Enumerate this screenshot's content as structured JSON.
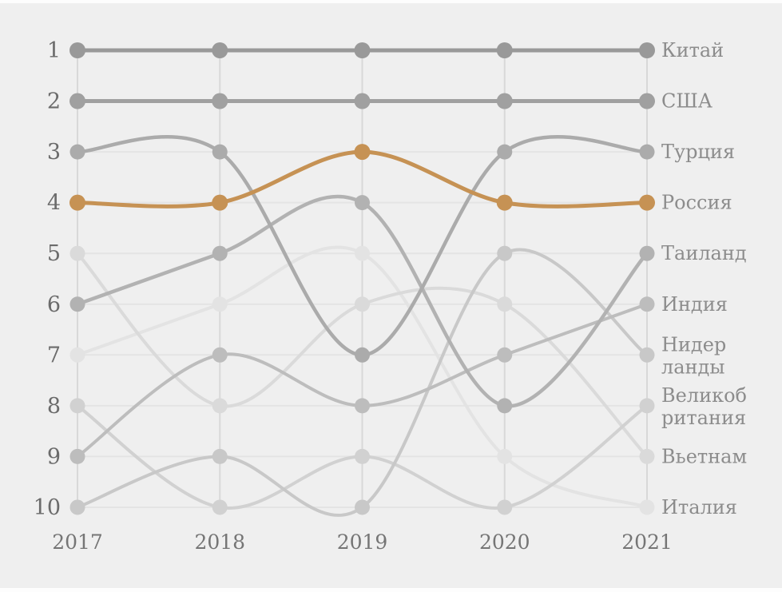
{
  "chart_data": {
    "type": "line",
    "subtype": "bump-rank-chart",
    "x": [
      2017,
      2018,
      2019,
      2020,
      2021
    ],
    "x_tick_labels": [
      "2017",
      "2018",
      "2019",
      "2020",
      "2021"
    ],
    "y_axis": {
      "tick_labels": [
        "1",
        "2",
        "3",
        "4",
        "5",
        "6",
        "7",
        "8",
        "9",
        "10"
      ],
      "range": [
        1,
        10
      ],
      "inverted": true,
      "meaning": "rank (1 = top)"
    },
    "grid": "on",
    "legend_position": "right-edge-labels",
    "background_color": "#efefef",
    "highlight_color": "#c69254",
    "series": [
      {
        "key": "china",
        "name": "Китай",
        "label_lines": [
          "Китай"
        ],
        "ranks": [
          1,
          1,
          1,
          1,
          1
        ],
        "color": "#999999",
        "width": 5,
        "dot_r": 10,
        "highlight": false
      },
      {
        "key": "usa",
        "name": "США",
        "label_lines": [
          "США"
        ],
        "ranks": [
          2,
          2,
          2,
          2,
          2
        ],
        "color": "#a0a0a0",
        "width": 5,
        "dot_r": 10,
        "highlight": false
      },
      {
        "key": "turkey",
        "name": "Турция",
        "label_lines": [
          "Турция"
        ],
        "ranks": [
          3,
          3,
          7,
          3,
          3
        ],
        "color": "#ababab",
        "width": 4.5,
        "dot_r": 9.5,
        "highlight": false
      },
      {
        "key": "russia",
        "name": "Россия",
        "label_lines": [
          "Россия"
        ],
        "ranks": [
          4,
          4,
          3,
          4,
          4
        ],
        "color": "#c69254",
        "width": 5,
        "dot_r": 10,
        "highlight": true
      },
      {
        "key": "thailand",
        "name": "Таиланд",
        "label_lines": [
          "Таиланд"
        ],
        "ranks": [
          6,
          5,
          4,
          8,
          5
        ],
        "color": "#b2b2b2",
        "width": 4.5,
        "dot_r": 9.5,
        "highlight": false
      },
      {
        "key": "india",
        "name": "Индия",
        "label_lines": [
          "Индия"
        ],
        "ranks": [
          9,
          7,
          8,
          7,
          6
        ],
        "color": "#bdbdbd",
        "width": 4,
        "dot_r": 9.5,
        "highlight": false
      },
      {
        "key": "netherlands",
        "name": "Нидерланды",
        "label_lines": [
          "Нидер",
          "ланды"
        ],
        "ranks": [
          10,
          9,
          10,
          5,
          7
        ],
        "color": "#c8c8c8",
        "width": 4,
        "dot_r": 9.5,
        "highlight": false
      },
      {
        "key": "uk",
        "name": "Великобритания",
        "label_lines": [
          "Великоб",
          "ритания"
        ],
        "ranks": [
          8,
          10,
          9,
          10,
          8
        ],
        "color": "#d1d1d1",
        "width": 4,
        "dot_r": 9.5,
        "highlight": false
      },
      {
        "key": "vietnam",
        "name": "Вьетнам",
        "label_lines": [
          "Вьетнам"
        ],
        "ranks": [
          5,
          8,
          6,
          6,
          9
        ],
        "color": "#dadada",
        "width": 4,
        "dot_r": 9.5,
        "highlight": false
      },
      {
        "key": "italy",
        "name": "Италия",
        "label_lines": [
          "Италия"
        ],
        "ranks": [
          7,
          6,
          5,
          9,
          10
        ],
        "color": "#e3e3e3",
        "width": 4,
        "dot_r": 9.5,
        "highlight": false
      }
    ]
  },
  "layout_colors": {
    "vertical_grid": "#d8d8d8",
    "horizontal_grid": "#e4e4e4"
  }
}
